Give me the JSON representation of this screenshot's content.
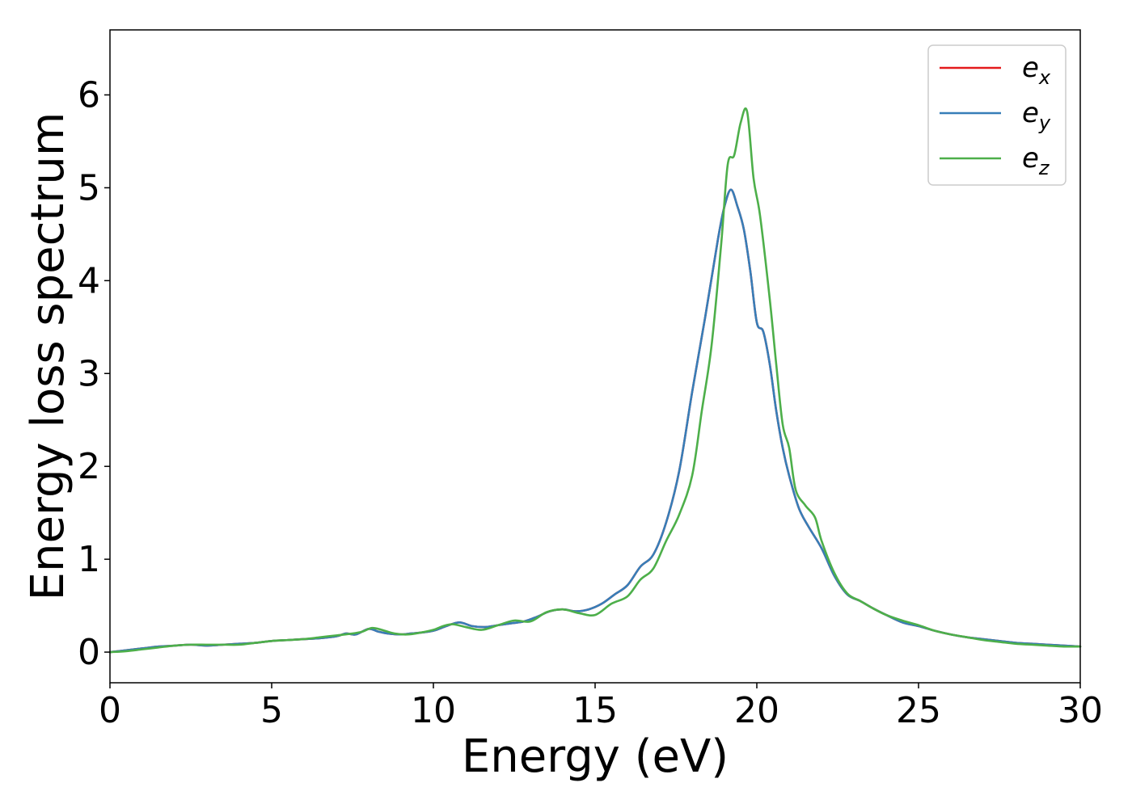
{
  "chart_data": {
    "type": "line",
    "title": "",
    "xlabel": "Energy (eV)",
    "ylabel": "Energy loss spectrum",
    "xlim": [
      0,
      30
    ],
    "ylim": [
      -0.33,
      6.7
    ],
    "xticks": [
      0,
      5,
      10,
      15,
      20,
      25,
      30
    ],
    "yticks": [
      0,
      1,
      2,
      3,
      4,
      5,
      6
    ],
    "grid": false,
    "legend_position": "top-right",
    "series": [
      {
        "name": "e_x",
        "label_base": "e",
        "label_sub": "x",
        "color": "#e41a1c",
        "x": [
          0,
          0.5,
          1,
          1.5,
          2,
          2.5,
          3,
          3.5,
          4,
          4.5,
          5,
          5.5,
          6,
          6.5,
          7,
          7.3,
          7.6,
          8,
          8.3,
          8.6,
          9,
          9.3,
          9.6,
          10,
          10.4,
          10.8,
          11.2,
          11.6,
          12,
          12.4,
          12.8,
          13.2,
          13.6,
          14,
          14.4,
          14.8,
          15.2,
          15.6,
          16,
          16.4,
          16.8,
          17.2,
          17.6,
          18,
          18.4,
          18.8,
          19,
          19.2,
          19.4,
          19.6,
          19.8,
          20,
          20.2,
          20.4,
          20.6,
          20.8,
          21,
          21.3,
          21.6,
          22,
          22.4,
          22.8,
          23.2,
          23.6,
          24,
          24.5,
          25,
          25.5,
          26,
          26.5,
          27,
          27.5,
          28,
          28.5,
          29,
          29.5,
          30
        ],
        "y": [
          0,
          0.02,
          0.04,
          0.06,
          0.07,
          0.08,
          0.07,
          0.08,
          0.09,
          0.1,
          0.12,
          0.13,
          0.14,
          0.15,
          0.17,
          0.2,
          0.19,
          0.25,
          0.22,
          0.2,
          0.19,
          0.2,
          0.21,
          0.23,
          0.28,
          0.32,
          0.28,
          0.27,
          0.29,
          0.31,
          0.33,
          0.38,
          0.44,
          0.46,
          0.44,
          0.46,
          0.52,
          0.62,
          0.72,
          0.92,
          1.05,
          1.4,
          1.95,
          2.8,
          3.6,
          4.45,
          4.8,
          4.98,
          4.8,
          4.55,
          4.1,
          3.55,
          3.45,
          3.1,
          2.6,
          2.2,
          1.9,
          1.55,
          1.35,
          1.12,
          0.82,
          0.62,
          0.55,
          0.47,
          0.4,
          0.32,
          0.28,
          0.23,
          0.19,
          0.16,
          0.14,
          0.12,
          0.1,
          0.09,
          0.08,
          0.07,
          0.06
        ]
      },
      {
        "name": "e_y",
        "label_base": "e",
        "label_sub": "y",
        "color": "#377eb8",
        "x": [
          0,
          0.5,
          1,
          1.5,
          2,
          2.5,
          3,
          3.5,
          4,
          4.5,
          5,
          5.5,
          6,
          6.5,
          7,
          7.3,
          7.6,
          8,
          8.3,
          8.6,
          9,
          9.3,
          9.6,
          10,
          10.4,
          10.8,
          11.2,
          11.6,
          12,
          12.4,
          12.8,
          13.2,
          13.6,
          14,
          14.4,
          14.8,
          15.2,
          15.6,
          16,
          16.4,
          16.8,
          17.2,
          17.6,
          18,
          18.4,
          18.8,
          19,
          19.2,
          19.4,
          19.6,
          19.8,
          20,
          20.2,
          20.4,
          20.6,
          20.8,
          21,
          21.3,
          21.6,
          22,
          22.4,
          22.8,
          23.2,
          23.6,
          24,
          24.5,
          25,
          25.5,
          26,
          26.5,
          27,
          27.5,
          28,
          28.5,
          29,
          29.5,
          30
        ],
        "y": [
          0,
          0.02,
          0.04,
          0.06,
          0.07,
          0.08,
          0.07,
          0.08,
          0.09,
          0.1,
          0.12,
          0.13,
          0.14,
          0.15,
          0.17,
          0.2,
          0.19,
          0.25,
          0.22,
          0.2,
          0.19,
          0.2,
          0.21,
          0.23,
          0.28,
          0.32,
          0.28,
          0.27,
          0.29,
          0.31,
          0.33,
          0.38,
          0.44,
          0.46,
          0.44,
          0.46,
          0.52,
          0.62,
          0.72,
          0.92,
          1.05,
          1.4,
          1.95,
          2.8,
          3.6,
          4.45,
          4.8,
          4.98,
          4.8,
          4.55,
          4.1,
          3.55,
          3.45,
          3.1,
          2.6,
          2.2,
          1.9,
          1.55,
          1.35,
          1.12,
          0.82,
          0.62,
          0.55,
          0.47,
          0.4,
          0.32,
          0.28,
          0.23,
          0.19,
          0.16,
          0.14,
          0.12,
          0.1,
          0.09,
          0.08,
          0.07,
          0.06
        ]
      },
      {
        "name": "e_z",
        "label_base": "e",
        "label_sub": "z",
        "color": "#4daf4a",
        "x": [
          0,
          0.5,
          1,
          1.5,
          2,
          2.5,
          3,
          3.5,
          4,
          4.5,
          5,
          5.5,
          6,
          6.5,
          7,
          7.5,
          7.8,
          8.1,
          8.4,
          8.8,
          9.2,
          9.6,
          10,
          10.3,
          10.6,
          11,
          11.5,
          12,
          12.5,
          13,
          13.5,
          14,
          14.5,
          15,
          15.5,
          16,
          16.4,
          16.8,
          17.2,
          17.6,
          18,
          18.3,
          18.6,
          18.9,
          19.1,
          19.3,
          19.5,
          19.7,
          19.9,
          20.1,
          20.4,
          20.6,
          20.8,
          21,
          21.2,
          21.5,
          21.8,
          22,
          22.4,
          22.8,
          23.2,
          23.6,
          24,
          24.5,
          25,
          25.5,
          26,
          26.5,
          27,
          27.5,
          28,
          28.5,
          29,
          29.5,
          30
        ],
        "y": [
          0,
          0.01,
          0.03,
          0.05,
          0.07,
          0.08,
          0.08,
          0.08,
          0.08,
          0.1,
          0.12,
          0.13,
          0.14,
          0.16,
          0.18,
          0.2,
          0.22,
          0.26,
          0.24,
          0.2,
          0.19,
          0.21,
          0.24,
          0.28,
          0.3,
          0.27,
          0.24,
          0.29,
          0.34,
          0.33,
          0.43,
          0.46,
          0.42,
          0.4,
          0.52,
          0.6,
          0.78,
          0.9,
          1.2,
          1.48,
          1.9,
          2.6,
          3.3,
          4.4,
          5.25,
          5.35,
          5.7,
          5.82,
          5.1,
          4.7,
          3.8,
          3.1,
          2.45,
          2.2,
          1.75,
          1.58,
          1.45,
          1.2,
          0.85,
          0.63,
          0.55,
          0.47,
          0.4,
          0.34,
          0.29,
          0.23,
          0.19,
          0.16,
          0.13,
          0.11,
          0.09,
          0.08,
          0.07,
          0.06,
          0.06
        ]
      }
    ]
  }
}
